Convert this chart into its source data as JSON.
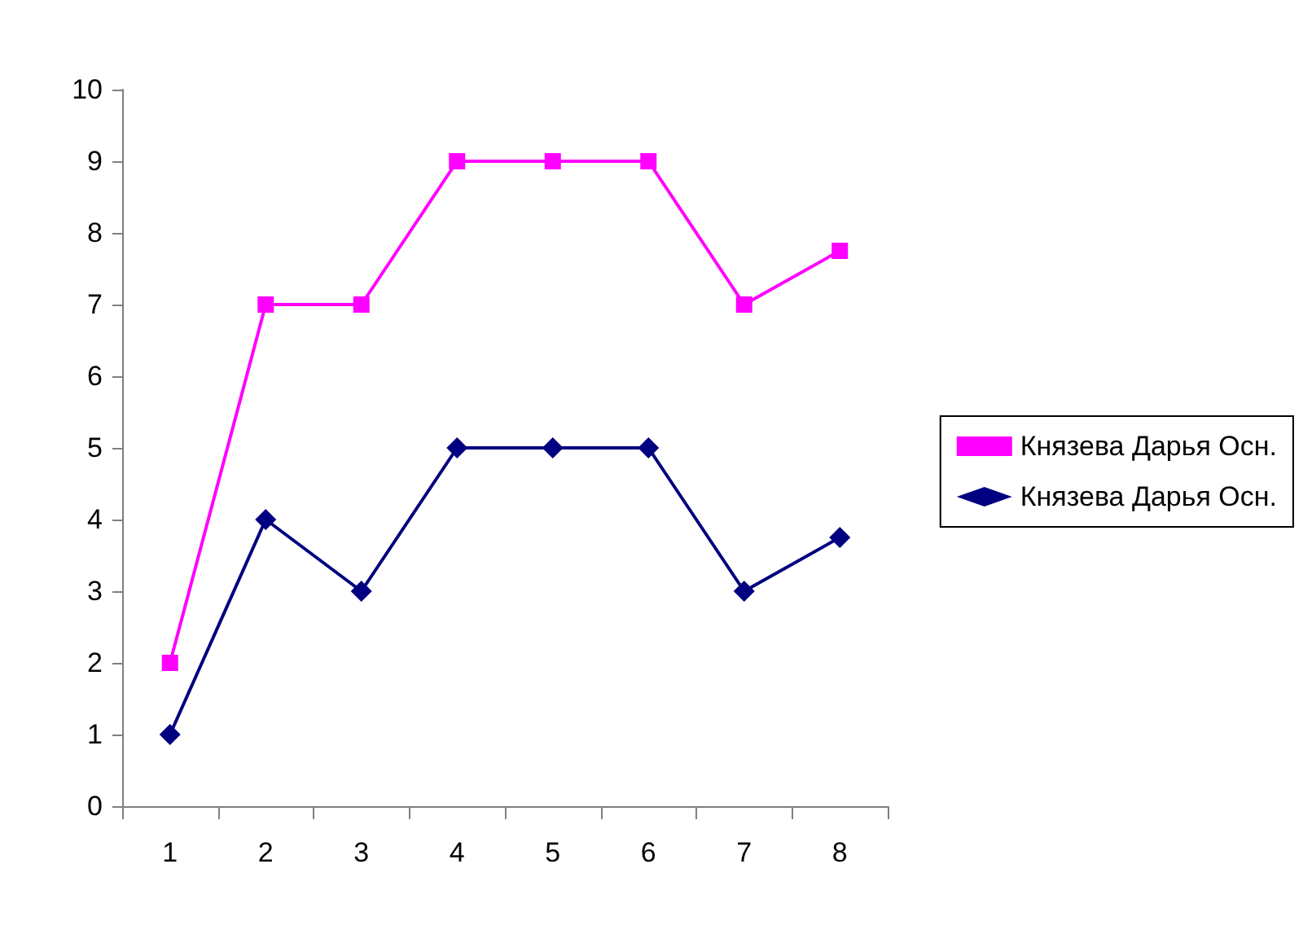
{
  "chart_data": {
    "type": "line",
    "categories": [
      "1",
      "2",
      "3",
      "4",
      "5",
      "6",
      "7",
      "8"
    ],
    "series": [
      {
        "name": "Князева Дарья Осн.",
        "color": "#ff00ff",
        "marker": "square",
        "values": [
          2,
          7,
          7,
          9,
          9,
          9,
          7,
          7.75
        ]
      },
      {
        "name": "Князева Дарья Осн.",
        "color": "#000080",
        "marker": "diamond",
        "values": [
          1,
          4,
          3,
          5,
          5,
          5,
          3,
          3.75
        ]
      }
    ],
    "ylim": [
      0,
      10
    ],
    "yticks": [
      0,
      1,
      2,
      3,
      4,
      5,
      6,
      7,
      8,
      9,
      10
    ],
    "grid": false,
    "legend": "right"
  }
}
